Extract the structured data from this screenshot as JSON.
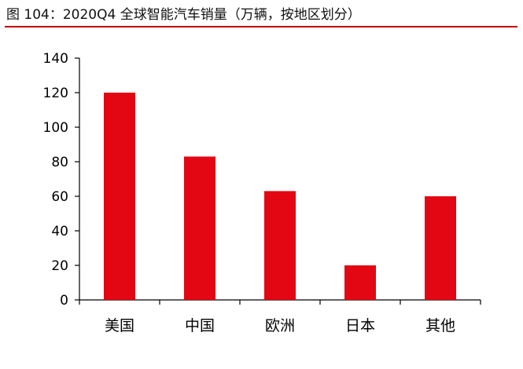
{
  "figure": {
    "title": "图 104：2020Q4 全球智能汽车销量（万辆，按地区划分）"
  },
  "chart_data": {
    "type": "bar",
    "title": "图 104：2020Q4 全球智能汽车销量（万辆，按地区划分）",
    "categories": [
      "美国",
      "中国",
      "欧洲",
      "日本",
      "其他"
    ],
    "values": [
      120,
      83,
      63,
      20,
      60
    ],
    "xlabel": "",
    "ylabel": "",
    "ylim": [
      0,
      140
    ],
    "yticks": [
      0,
      20,
      40,
      60,
      80,
      100,
      120,
      140
    ],
    "bar_color": "#e30613",
    "title_rule_color": "#c00000",
    "grid": false,
    "legend": "none"
  }
}
